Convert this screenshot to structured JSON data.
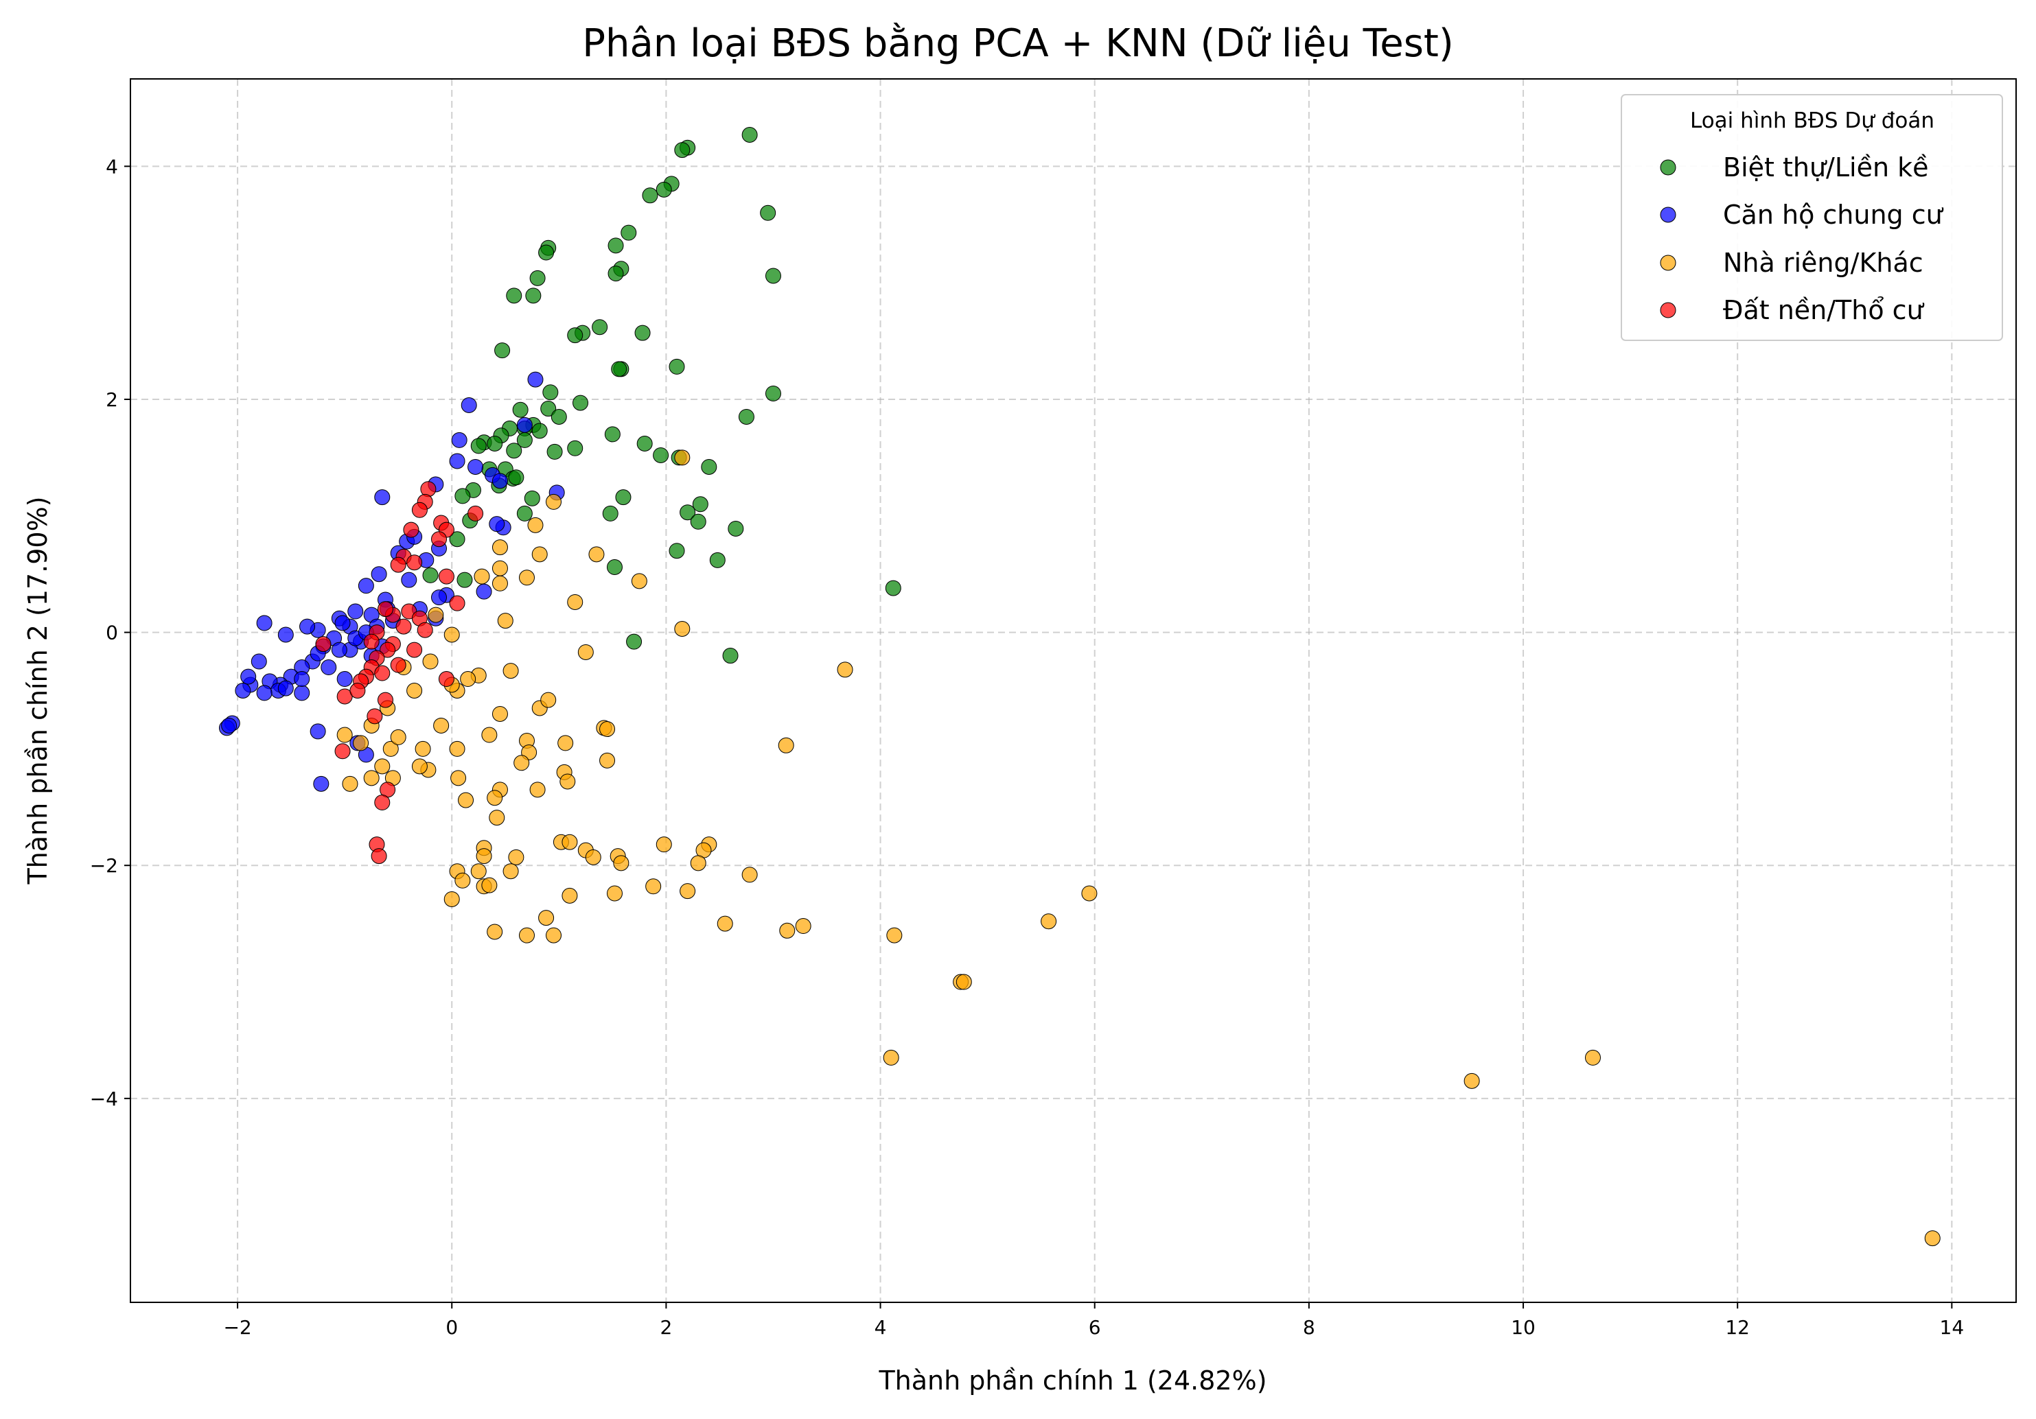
{
  "chart_data": {
    "type": "scatter",
    "title": "Phân loại BĐS bằng PCA + KNN (Dữ liệu Test)",
    "xlabel": "Thành phần chính 1 (24.82%)",
    "ylabel": "Thành phần chính 2 (17.90%)",
    "xlim": [
      -3.0,
      14.6
    ],
    "ylim": [
      -5.75,
      4.75
    ],
    "xticks": [
      -2,
      0,
      2,
      4,
      6,
      8,
      10,
      12,
      14
    ],
    "yticks": [
      -4,
      -2,
      0,
      2,
      4
    ],
    "xtick_labels": [
      "−2",
      "0",
      "2",
      "4",
      "6",
      "8",
      "10",
      "12",
      "14"
    ],
    "ytick_labels": [
      "−4",
      "−2",
      "0",
      "2",
      "4"
    ],
    "grid": true,
    "legend": {
      "title": "Loại hình BĐS Dự đoán",
      "position": "top-right"
    },
    "series": [
      {
        "name": "Biệt thự/Liền kề",
        "color": "#008000",
        "points": [
          [
            2.78,
            4.27
          ],
          [
            2.2,
            4.16
          ],
          [
            2.15,
            4.14
          ],
          [
            2.05,
            3.85
          ],
          [
            1.98,
            3.8
          ],
          [
            1.85,
            3.75
          ],
          [
            2.95,
            3.6
          ],
          [
            1.65,
            3.43
          ],
          [
            0.9,
            3.3
          ],
          [
            0.88,
            3.26
          ],
          [
            1.53,
            3.32
          ],
          [
            3.0,
            3.06
          ],
          [
            1.58,
            3.12
          ],
          [
            1.53,
            3.08
          ],
          [
            0.8,
            3.04
          ],
          [
            0.58,
            2.89
          ],
          [
            0.76,
            2.89
          ],
          [
            1.38,
            2.62
          ],
          [
            1.22,
            2.57
          ],
          [
            1.15,
            2.55
          ],
          [
            1.78,
            2.57
          ],
          [
            0.47,
            2.42
          ],
          [
            1.58,
            2.26
          ],
          [
            1.56,
            2.26
          ],
          [
            2.1,
            2.28
          ],
          [
            3.0,
            2.05
          ],
          [
            0.92,
            2.06
          ],
          [
            1.2,
            1.97
          ],
          [
            0.9,
            1.92
          ],
          [
            0.64,
            1.91
          ],
          [
            1.0,
            1.85
          ],
          [
            2.75,
            1.85
          ],
          [
            0.76,
            1.78
          ],
          [
            0.68,
            1.75
          ],
          [
            0.54,
            1.75
          ],
          [
            0.82,
            1.73
          ],
          [
            0.46,
            1.69
          ],
          [
            1.5,
            1.7
          ],
          [
            0.3,
            1.63
          ],
          [
            0.4,
            1.62
          ],
          [
            0.68,
            1.65
          ],
          [
            1.8,
            1.62
          ],
          [
            0.25,
            1.6
          ],
          [
            0.58,
            1.56
          ],
          [
            0.96,
            1.55
          ],
          [
            1.15,
            1.58
          ],
          [
            1.95,
            1.52
          ],
          [
            2.12,
            1.5
          ],
          [
            2.4,
            1.42
          ],
          [
            0.5,
            1.4
          ],
          [
            0.35,
            1.4
          ],
          [
            0.57,
            1.32
          ],
          [
            0.6,
            1.33
          ],
          [
            0.44,
            1.26
          ],
          [
            0.2,
            1.22
          ],
          [
            0.1,
            1.17
          ],
          [
            1.6,
            1.16
          ],
          [
            0.75,
            1.15
          ],
          [
            2.32,
            1.1
          ],
          [
            2.2,
            1.03
          ],
          [
            1.48,
            1.02
          ],
          [
            0.68,
            1.02
          ],
          [
            0.17,
            0.96
          ],
          [
            2.3,
            0.95
          ],
          [
            2.65,
            0.89
          ],
          [
            2.1,
            0.7
          ],
          [
            2.48,
            0.62
          ],
          [
            1.52,
            0.56
          ],
          [
            -0.2,
            0.49
          ],
          [
            4.12,
            0.38
          ],
          [
            1.7,
            -0.08
          ],
          [
            2.6,
            -0.2
          ],
          [
            0.12,
            0.45
          ],
          [
            0.05,
            0.8
          ]
        ]
      },
      {
        "name": "Căn hộ chung cư",
        "color": "#0000ff",
        "points": [
          [
            0.78,
            2.17
          ],
          [
            0.16,
            1.95
          ],
          [
            0.68,
            1.78
          ],
          [
            0.07,
            1.65
          ],
          [
            0.05,
            1.47
          ],
          [
            0.22,
            1.42
          ],
          [
            -0.15,
            1.27
          ],
          [
            0.38,
            1.35
          ],
          [
            0.45,
            1.3
          ],
          [
            0.98,
            1.2
          ],
          [
            -0.65,
            1.16
          ],
          [
            0.48,
            0.9
          ],
          [
            0.42,
            0.93
          ],
          [
            -0.12,
            0.72
          ],
          [
            -0.5,
            0.68
          ],
          [
            -0.42,
            0.78
          ],
          [
            -0.35,
            0.82
          ],
          [
            -0.24,
            0.62
          ],
          [
            -0.68,
            0.5
          ],
          [
            -0.4,
            0.45
          ],
          [
            0.3,
            0.35
          ],
          [
            -0.05,
            0.32
          ],
          [
            -0.12,
            0.3
          ],
          [
            -0.8,
            0.4
          ],
          [
            -0.62,
            0.28
          ],
          [
            -0.6,
            0.2
          ],
          [
            -0.75,
            0.15
          ],
          [
            -0.9,
            0.18
          ],
          [
            -1.05,
            0.12
          ],
          [
            -0.95,
            0.05
          ],
          [
            -1.25,
            0.02
          ],
          [
            -1.35,
            0.05
          ],
          [
            -1.55,
            -0.02
          ],
          [
            -1.75,
            0.08
          ],
          [
            -1.1,
            -0.05
          ],
          [
            -0.85,
            -0.08
          ],
          [
            -0.95,
            -0.15
          ],
          [
            -1.2,
            -0.12
          ],
          [
            -1.3,
            -0.25
          ],
          [
            -1.4,
            -0.3
          ],
          [
            -1.5,
            -0.38
          ],
          [
            -1.6,
            -0.45
          ],
          [
            -1.7,
            -0.42
          ],
          [
            -1.8,
            -0.25
          ],
          [
            -1.88,
            -0.45
          ],
          [
            -1.95,
            -0.5
          ],
          [
            -2.05,
            -0.78
          ],
          [
            -2.1,
            -0.82
          ],
          [
            -2.08,
            -0.8
          ],
          [
            -1.62,
            -0.5
          ],
          [
            -1.4,
            -0.52
          ],
          [
            -1.25,
            -0.85
          ],
          [
            -1.22,
            -1.3
          ],
          [
            -0.8,
            -1.05
          ],
          [
            -0.88,
            -0.95
          ],
          [
            -1.0,
            -0.4
          ],
          [
            -1.15,
            -0.3
          ],
          [
            -0.75,
            -0.2
          ],
          [
            -1.05,
            -0.15
          ],
          [
            -1.25,
            -0.18
          ],
          [
            -1.02,
            0.08
          ],
          [
            -1.4,
            -0.4
          ],
          [
            -1.55,
            -0.48
          ],
          [
            -1.75,
            -0.52
          ],
          [
            -1.9,
            -0.38
          ],
          [
            -0.7,
            0.05
          ],
          [
            -0.55,
            0.1
          ],
          [
            -0.3,
            0.2
          ],
          [
            -0.15,
            0.12
          ],
          [
            -0.9,
            -0.05
          ],
          [
            -0.8,
            0.0
          ],
          [
            -0.65,
            -0.12
          ]
        ]
      },
      {
        "name": "Nhà riêng/Khác",
        "color": "#ffa500",
        "points": [
          [
            2.15,
            1.5
          ],
          [
            0.95,
            1.12
          ],
          [
            0.78,
            0.92
          ],
          [
            0.45,
            0.73
          ],
          [
            1.35,
            0.67
          ],
          [
            0.82,
            0.67
          ],
          [
            0.45,
            0.55
          ],
          [
            0.28,
            0.48
          ],
          [
            0.7,
            0.47
          ],
          [
            0.45,
            0.42
          ],
          [
            1.75,
            0.44
          ],
          [
            1.15,
            0.26
          ],
          [
            2.15,
            0.03
          ],
          [
            0.0,
            -0.02
          ],
          [
            3.67,
            -0.32
          ],
          [
            1.25,
            -0.17
          ],
          [
            0.55,
            -0.33
          ],
          [
            0.25,
            -0.37
          ],
          [
            0.05,
            -0.5
          ],
          [
            -0.1,
            -0.8
          ],
          [
            0.45,
            -0.7
          ],
          [
            0.35,
            -0.88
          ],
          [
            0.82,
            -0.65
          ],
          [
            0.9,
            -0.58
          ],
          [
            1.42,
            -0.82
          ],
          [
            1.45,
            -0.83
          ],
          [
            3.12,
            -0.97
          ],
          [
            0.7,
            -0.93
          ],
          [
            1.06,
            -0.95
          ],
          [
            0.72,
            -1.03
          ],
          [
            0.65,
            -1.12
          ],
          [
            1.45,
            -1.1
          ],
          [
            0.05,
            -1.0
          ],
          [
            -0.27,
            -1.0
          ],
          [
            -0.57,
            -1.0
          ],
          [
            -0.85,
            -0.95
          ],
          [
            -1.0,
            -0.88
          ],
          [
            -0.95,
            -1.3
          ],
          [
            -0.75,
            -1.25
          ],
          [
            0.06,
            -1.25
          ],
          [
            0.45,
            -1.35
          ],
          [
            0.8,
            -1.35
          ],
          [
            1.05,
            -1.2
          ],
          [
            1.08,
            -1.28
          ],
          [
            0.4,
            -1.42
          ],
          [
            0.13,
            -1.44
          ],
          [
            -0.22,
            -1.18
          ],
          [
            0.42,
            -1.59
          ],
          [
            1.02,
            -1.8
          ],
          [
            1.1,
            -1.8
          ],
          [
            0.3,
            -1.85
          ],
          [
            0.3,
            -1.92
          ],
          [
            1.98,
            -1.82
          ],
          [
            2.4,
            -1.82
          ],
          [
            1.25,
            -1.87
          ],
          [
            1.32,
            -1.93
          ],
          [
            1.55,
            -1.92
          ],
          [
            0.6,
            -1.93
          ],
          [
            2.35,
            -1.87
          ],
          [
            1.58,
            -1.98
          ],
          [
            2.3,
            -1.98
          ],
          [
            0.05,
            -2.05
          ],
          [
            0.25,
            -2.05
          ],
          [
            0.55,
            -2.05
          ],
          [
            0.1,
            -2.13
          ],
          [
            2.78,
            -2.08
          ],
          [
            1.88,
            -2.18
          ],
          [
            0.3,
            -2.18
          ],
          [
            0.35,
            -2.17
          ],
          [
            2.2,
            -2.22
          ],
          [
            1.52,
            -2.24
          ],
          [
            1.1,
            -2.26
          ],
          [
            0.0,
            -2.29
          ],
          [
            0.88,
            -2.45
          ],
          [
            2.55,
            -2.5
          ],
          [
            3.28,
            -2.52
          ],
          [
            3.13,
            -2.56
          ],
          [
            0.4,
            -2.57
          ],
          [
            0.7,
            -2.6
          ],
          [
            0.95,
            -2.6
          ],
          [
            4.13,
            -2.6
          ],
          [
            5.57,
            -2.48
          ],
          [
            5.95,
            -2.24
          ],
          [
            4.75,
            -3.0
          ],
          [
            4.78,
            -3.0
          ],
          [
            4.1,
            -3.65
          ],
          [
            9.52,
            -3.85
          ],
          [
            10.65,
            -3.65
          ],
          [
            13.82,
            -5.2
          ],
          [
            -0.45,
            -0.3
          ],
          [
            -0.35,
            -0.5
          ],
          [
            -0.6,
            -0.65
          ],
          [
            -0.75,
            -0.8
          ],
          [
            -0.5,
            -0.9
          ],
          [
            -0.3,
            -1.15
          ],
          [
            -0.65,
            -1.15
          ],
          [
            -0.55,
            -1.25
          ],
          [
            0.0,
            -0.45
          ],
          [
            0.15,
            -0.4
          ],
          [
            -0.2,
            -0.25
          ],
          [
            0.5,
            0.1
          ],
          [
            -0.15,
            0.15
          ]
        ]
      },
      {
        "name": "Đất nền/Thổ cư",
        "color": "#ff0000",
        "points": [
          [
            -0.22,
            1.23
          ],
          [
            -0.25,
            1.12
          ],
          [
            -0.3,
            1.05
          ],
          [
            0.22,
            1.02
          ],
          [
            -0.1,
            0.94
          ],
          [
            -0.05,
            0.88
          ],
          [
            -0.12,
            0.8
          ],
          [
            -0.38,
            0.88
          ],
          [
            -0.45,
            0.65
          ],
          [
            -0.35,
            0.6
          ],
          [
            -0.5,
            0.58
          ],
          [
            -0.05,
            0.48
          ],
          [
            0.05,
            0.25
          ],
          [
            -0.4,
            0.18
          ],
          [
            -0.3,
            0.12
          ],
          [
            -0.55,
            0.15
          ],
          [
            -0.62,
            0.2
          ],
          [
            -0.45,
            0.05
          ],
          [
            -0.7,
            0.0
          ],
          [
            -0.75,
            -0.08
          ],
          [
            -0.55,
            -0.1
          ],
          [
            -0.6,
            -0.15
          ],
          [
            -0.7,
            -0.22
          ],
          [
            -0.75,
            -0.3
          ],
          [
            -0.8,
            -0.38
          ],
          [
            -0.85,
            -0.42
          ],
          [
            -0.65,
            -0.35
          ],
          [
            -0.5,
            -0.28
          ],
          [
            -0.35,
            -0.15
          ],
          [
            -0.25,
            0.02
          ],
          [
            -1.2,
            -0.1
          ],
          [
            -1.0,
            -0.55
          ],
          [
            -0.88,
            -0.5
          ],
          [
            -0.72,
            -0.72
          ],
          [
            -0.62,
            -0.58
          ],
          [
            -0.05,
            -0.4
          ],
          [
            -1.02,
            -1.02
          ],
          [
            -0.6,
            -1.35
          ],
          [
            -0.65,
            -1.46
          ],
          [
            -0.7,
            -1.82
          ],
          [
            -0.68,
            -1.92
          ]
        ]
      }
    ]
  }
}
